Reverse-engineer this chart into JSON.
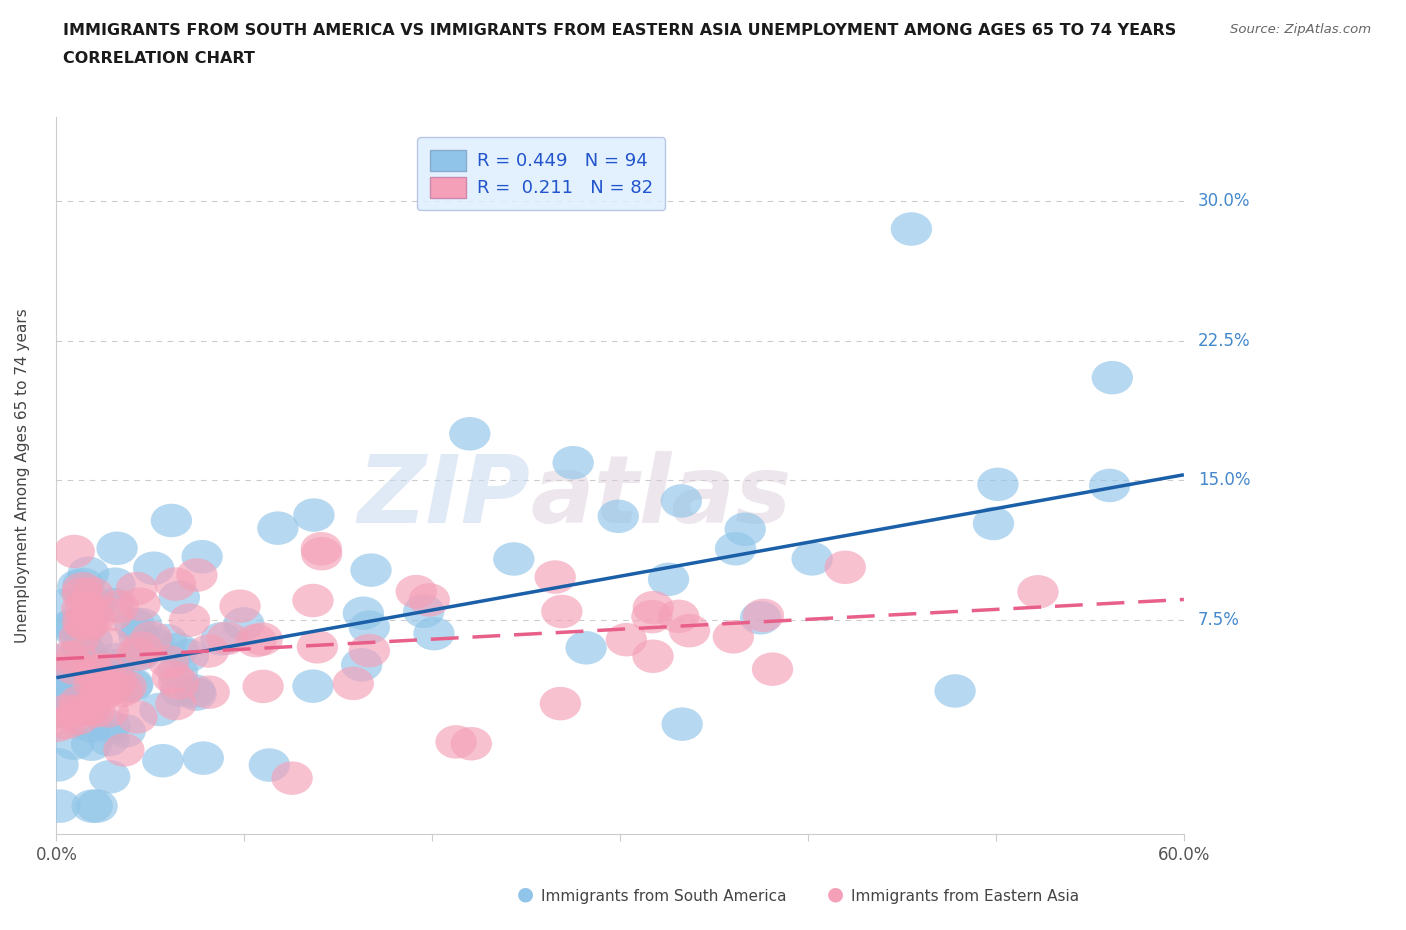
{
  "title_line1": "IMMIGRANTS FROM SOUTH AMERICA VS IMMIGRANTS FROM EASTERN ASIA UNEMPLOYMENT AMONG AGES 65 TO 74 YEARS",
  "title_line2": "CORRELATION CHART",
  "source_text": "Source: ZipAtlas.com",
  "ylabel": "Unemployment Among Ages 65 to 74 years",
  "xlabel_sa": "Immigrants from South America",
  "xlabel_ea": "Immigrants from Eastern Asia",
  "R_sa": 0.449,
  "N_sa": 94,
  "R_ea": 0.211,
  "N_ea": 82,
  "color_sa": "#90c4e8",
  "color_ea": "#f4a0b8",
  "line_color_sa": "#1a5fa8",
  "line_color_ea": "#e8608a",
  "xlim": [
    0.0,
    0.6
  ],
  "ylim": [
    -0.04,
    0.345
  ],
  "yticks": [
    0.075,
    0.15,
    0.225,
    0.3
  ],
  "ytick_labels": [
    "7.5%",
    "15.0%",
    "22.5%",
    "30.0%"
  ],
  "xticks": [
    0.0,
    0.1,
    0.2,
    0.3,
    0.4,
    0.5,
    0.6
  ],
  "xtick_labels": [
    "0.0%",
    "",
    "",
    "",
    "",
    "",
    "60.0%"
  ],
  "watermark_zip": "ZIP",
  "watermark_atlas": "atlas",
  "legend_box_color": "#ddeeff",
  "legend_border_color": "#aabbdd",
  "seed_sa": 7,
  "seed_ea": 13,
  "trend_sa_x0": 0.0,
  "trend_sa_y0": 0.044,
  "trend_sa_x1": 0.6,
  "trend_sa_y1": 0.153,
  "trend_ea_x0": 0.0,
  "trend_ea_y0": 0.054,
  "trend_ea_x1": 0.6,
  "trend_ea_y1": 0.086
}
